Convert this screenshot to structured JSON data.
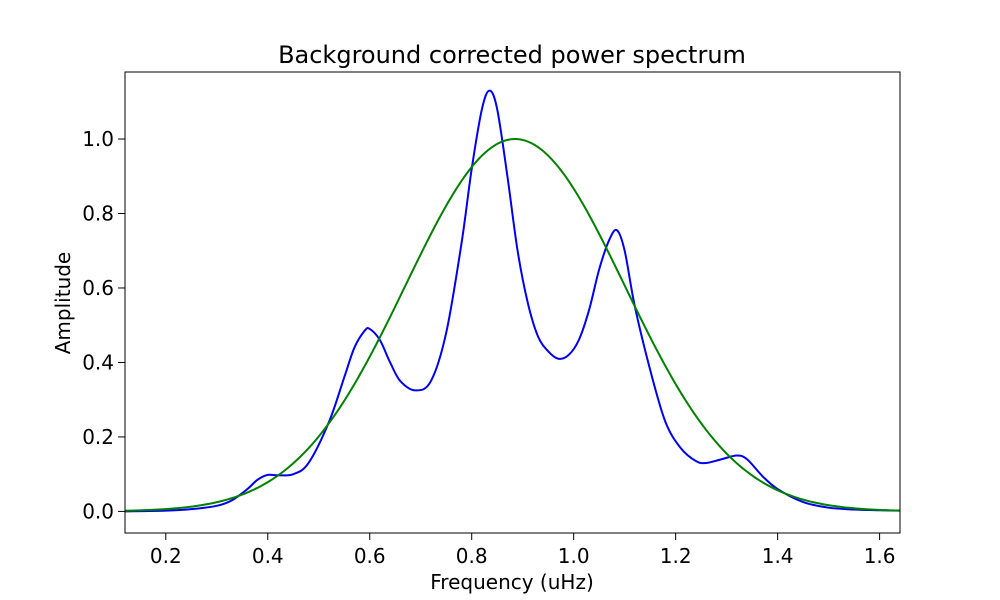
{
  "chart_data": {
    "type": "line",
    "title": "Background corrected power spectrum",
    "xlabel": "Frequency (uHz)",
    "ylabel": "Amplitude",
    "xlim": [
      0.12,
      1.64
    ],
    "ylim": [
      -0.058,
      1.18
    ],
    "xticks": [
      0.2,
      0.4,
      0.6,
      0.8,
      1.0,
      1.2,
      1.4,
      1.6
    ],
    "xtick_labels": [
      "0.2",
      "0.4",
      "0.6",
      "0.8",
      "1.0",
      "1.2",
      "1.4",
      "1.6"
    ],
    "yticks": [
      0.0,
      0.2,
      0.4,
      0.6,
      0.8,
      1.0
    ],
    "ytick_labels": [
      "0.0",
      "0.2",
      "0.4",
      "0.6",
      "0.8",
      "1.0"
    ],
    "grid": false,
    "series": [
      {
        "color": "#0000ee",
        "x": [
          0.12,
          0.2,
          0.25,
          0.3,
          0.33,
          0.36,
          0.38,
          0.4,
          0.42,
          0.45,
          0.48,
          0.52,
          0.55,
          0.57,
          0.59,
          0.6,
          0.62,
          0.64,
          0.66,
          0.69,
          0.72,
          0.75,
          0.78,
          0.8,
          0.82,
          0.835,
          0.85,
          0.87,
          0.89,
          0.91,
          0.93,
          0.95,
          0.97,
          0.99,
          1.01,
          1.03,
          1.05,
          1.07,
          1.085,
          1.1,
          1.12,
          1.15,
          1.18,
          1.21,
          1.24,
          1.26,
          1.29,
          1.32,
          1.34,
          1.37,
          1.4,
          1.45,
          1.5,
          1.55,
          1.6,
          1.64
        ],
        "y": [
          0.0,
          0.002,
          0.006,
          0.015,
          0.03,
          0.06,
          0.085,
          0.098,
          0.097,
          0.1,
          0.13,
          0.24,
          0.36,
          0.44,
          0.485,
          0.49,
          0.46,
          0.4,
          0.35,
          0.325,
          0.35,
          0.48,
          0.72,
          0.92,
          1.08,
          1.13,
          1.08,
          0.9,
          0.7,
          0.56,
          0.47,
          0.43,
          0.41,
          0.42,
          0.46,
          0.54,
          0.65,
          0.73,
          0.755,
          0.7,
          0.55,
          0.38,
          0.24,
          0.17,
          0.135,
          0.13,
          0.14,
          0.15,
          0.14,
          0.095,
          0.06,
          0.025,
          0.01,
          0.005,
          0.003,
          0.002
        ]
      },
      {
        "color": "#008000",
        "model": "gaussian",
        "center": 0.885,
        "sigma": 0.215,
        "amplitude": 1.0,
        "samples": 160
      }
    ]
  }
}
